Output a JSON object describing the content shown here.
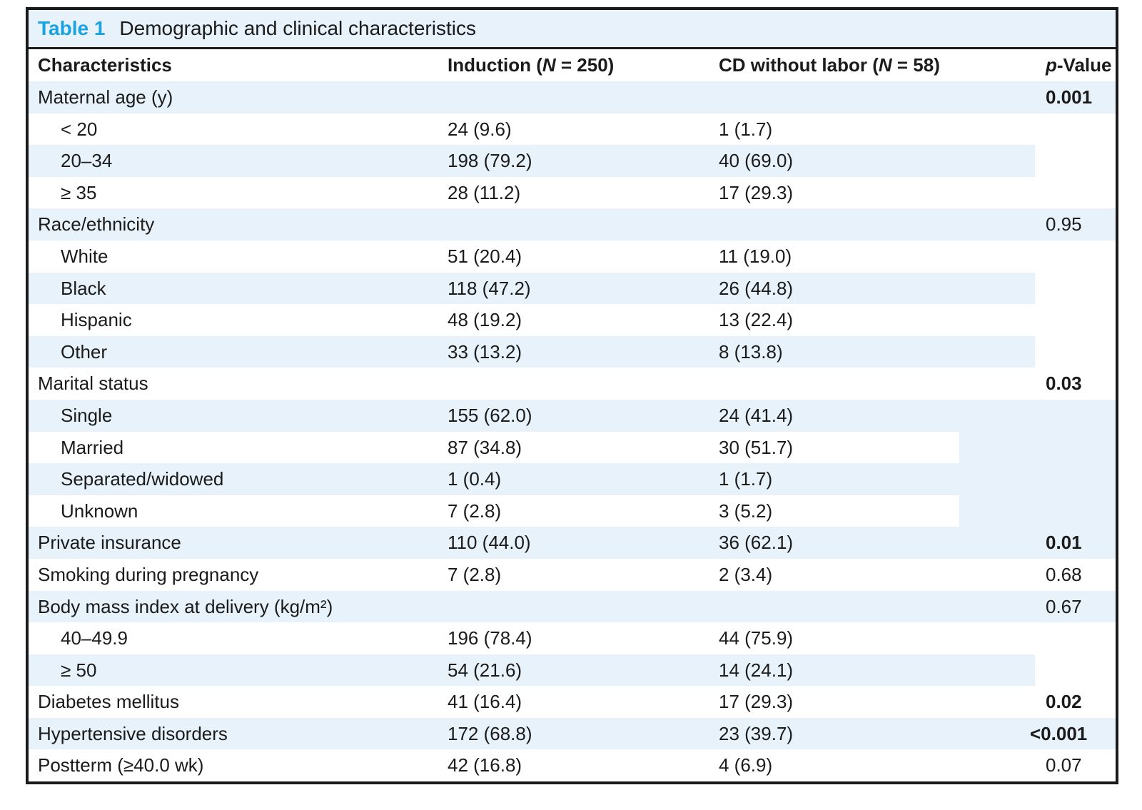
{
  "title": {
    "label": "Table 1",
    "caption": "Demographic and clinical characteristics"
  },
  "columns": {
    "characteristics": "Characteristics",
    "induction": {
      "prefix": "Induction (",
      "n": "N",
      "suffix": " = 250)"
    },
    "cd": {
      "prefix": "CD without labor (",
      "n": "N",
      "suffix": " = 58)"
    },
    "p": {
      "italic": "p",
      "rest": "-Value"
    }
  },
  "colors": {
    "accent_blue": "#1aa3e2",
    "row_blue": "#e7f2fb",
    "border": "#1a1a1a",
    "text": "#1b1b1b"
  },
  "rows": [
    {
      "label": "Maternal age (y)",
      "indent": false,
      "induction": "",
      "cd": "",
      "p": "0.001",
      "p_bold": true,
      "shade": "blue"
    },
    {
      "label": "< 20",
      "indent": true,
      "induction": "24 (9.6)",
      "cd": "1 (1.7)",
      "p": "",
      "p_bold": false,
      "shade": "white"
    },
    {
      "label": "20–34",
      "indent": true,
      "induction": "198 (79.2)",
      "cd": "40 (69.0)",
      "p": "",
      "p_bold": false,
      "shade": "blue_cut"
    },
    {
      "label": "≥ 35",
      "indent": true,
      "induction": "28 (11.2)",
      "cd": "17 (29.3)",
      "p": "",
      "p_bold": false,
      "shade": "white"
    },
    {
      "label": "Race/ethnicity",
      "indent": false,
      "induction": "",
      "cd": "",
      "p": "0.95",
      "p_bold": false,
      "shade": "blue"
    },
    {
      "label": "White",
      "indent": true,
      "induction": "51 (20.4)",
      "cd": "11 (19.0)",
      "p": "",
      "p_bold": false,
      "shade": "white"
    },
    {
      "label": "Black",
      "indent": true,
      "induction": "118 (47.2)",
      "cd": "26 (44.8)",
      "p": "",
      "p_bold": false,
      "shade": "blue_cut"
    },
    {
      "label": "Hispanic",
      "indent": true,
      "induction": "48 (19.2)",
      "cd": "13 (22.4)",
      "p": "",
      "p_bold": false,
      "shade": "white"
    },
    {
      "label": "Other",
      "indent": true,
      "induction": "33 (13.2)",
      "cd": "8 (13.8)",
      "p": "",
      "p_bold": false,
      "shade": "blue_cut"
    },
    {
      "label": "Marital status",
      "indent": false,
      "induction": "",
      "cd": "",
      "p": "0.03",
      "p_bold": true,
      "shade": "white"
    },
    {
      "label": "Single",
      "indent": true,
      "induction": "155 (62.0)",
      "cd": "24 (41.4)",
      "p": "",
      "p_bold": false,
      "shade": "blue"
    },
    {
      "label": "Married",
      "indent": true,
      "induction": "87 (34.8)",
      "cd": "30 (51.7)",
      "p": "",
      "p_bold": false,
      "shade": "white_cut"
    },
    {
      "label": "Separated/widowed",
      "indent": true,
      "induction": "1 (0.4)",
      "cd": "1 (1.7)",
      "p": "",
      "p_bold": false,
      "shade": "blue"
    },
    {
      "label": "Unknown",
      "indent": true,
      "induction": "7 (2.8)",
      "cd": "3 (5.2)",
      "p": "",
      "p_bold": false,
      "shade": "white_cut"
    },
    {
      "label": "Private insurance",
      "indent": false,
      "induction": "110 (44.0)",
      "cd": "36 (62.1)",
      "p": "0.01",
      "p_bold": true,
      "shade": "blue"
    },
    {
      "label": "Smoking during pregnancy",
      "indent": false,
      "induction": "7 (2.8)",
      "cd": "2 (3.4)",
      "p": "0.68",
      "p_bold": false,
      "shade": "white"
    },
    {
      "label": "Body mass index at delivery (kg/m²)",
      "indent": false,
      "induction": "",
      "cd": "",
      "p": "0.67",
      "p_bold": false,
      "shade": "blue"
    },
    {
      "label": "40–49.9",
      "indent": true,
      "induction": "196 (78.4)",
      "cd": "44 (75.9)",
      "p": "",
      "p_bold": false,
      "shade": "white"
    },
    {
      "label": "≥ 50",
      "indent": true,
      "induction": "54 (21.6)",
      "cd": "14 (24.1)",
      "p": "",
      "p_bold": false,
      "shade": "blue_cut"
    },
    {
      "label": "Diabetes mellitus",
      "indent": false,
      "induction": "41 (16.4)",
      "cd": "17 (29.3)",
      "p": "0.02",
      "p_bold": true,
      "shade": "white"
    },
    {
      "label": "Hypertensive disorders",
      "indent": false,
      "induction": "172 (68.8)",
      "cd": "23 (39.7)",
      "p": "<0.001",
      "p_bold": true,
      "shade": "blue"
    },
    {
      "label": "Postterm (≥40.0 wk)",
      "indent": false,
      "induction": "42 (16.8)",
      "cd": "4 (6.9)",
      "p": "0.07",
      "p_bold": false,
      "shade": "white"
    }
  ]
}
